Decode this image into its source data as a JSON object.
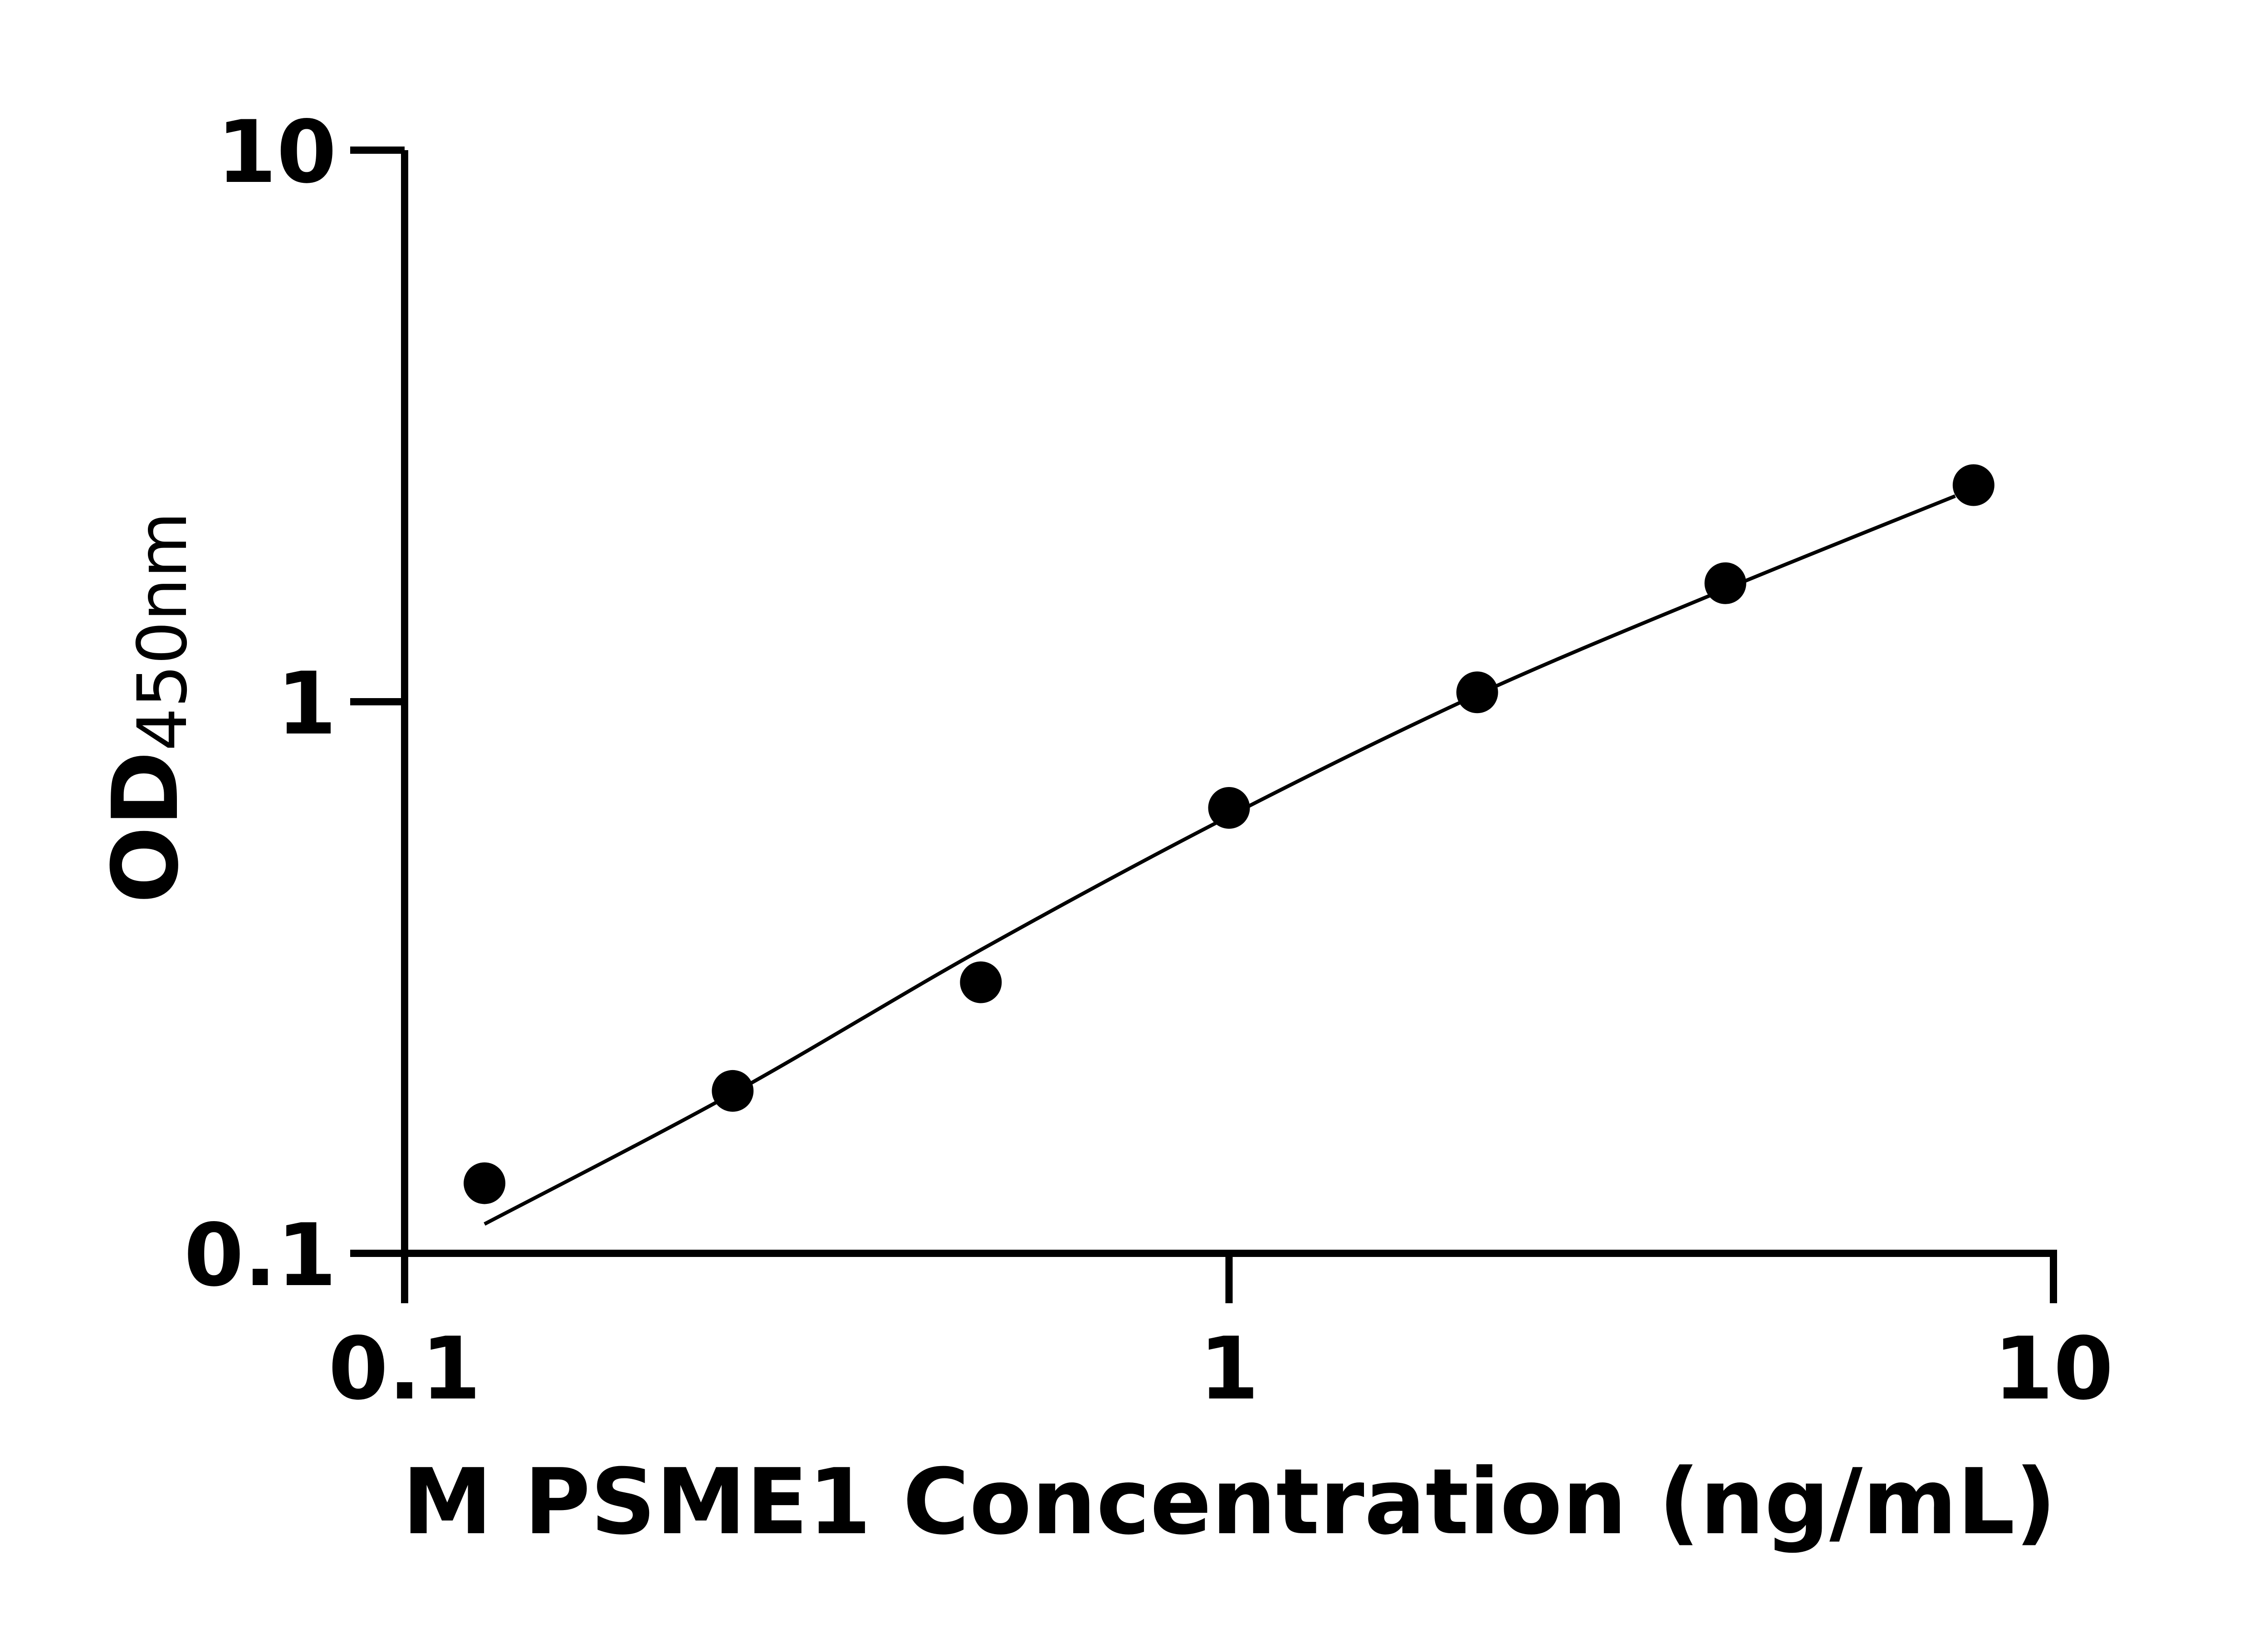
{
  "chart_data": {
    "type": "scatter",
    "title": "",
    "xlabel": "M PSME1 Concentration (ng/mL)",
    "ylabel": "OD450nm",
    "ylabel_main": "OD",
    "ylabel_sub": "450nm",
    "x_scale": "log",
    "y_scale": "log",
    "xlim": [
      0.1,
      10
    ],
    "ylim": [
      0.1,
      10
    ],
    "x_ticks": [
      "0.1",
      "1",
      "10"
    ],
    "y_ticks": [
      "0.1",
      "1",
      "10"
    ],
    "grid": false,
    "legend": "none",
    "series": [
      {
        "x": [
          0.125,
          0.25,
          0.5,
          1,
          2,
          4,
          8
        ],
        "y": [
          0.134,
          0.197,
          0.31,
          0.642,
          1.04,
          1.64,
          2.47
        ]
      }
    ],
    "fit_curve": {
      "x": [
        0.125,
        0.25,
        0.5,
        1,
        2,
        4,
        7.6
      ],
      "y": [
        0.113,
        0.195,
        0.355,
        0.62,
        1.03,
        1.6,
        2.36
      ]
    },
    "colors": {
      "points": "#000000",
      "line": "#000000",
      "axes": "#000000"
    }
  }
}
